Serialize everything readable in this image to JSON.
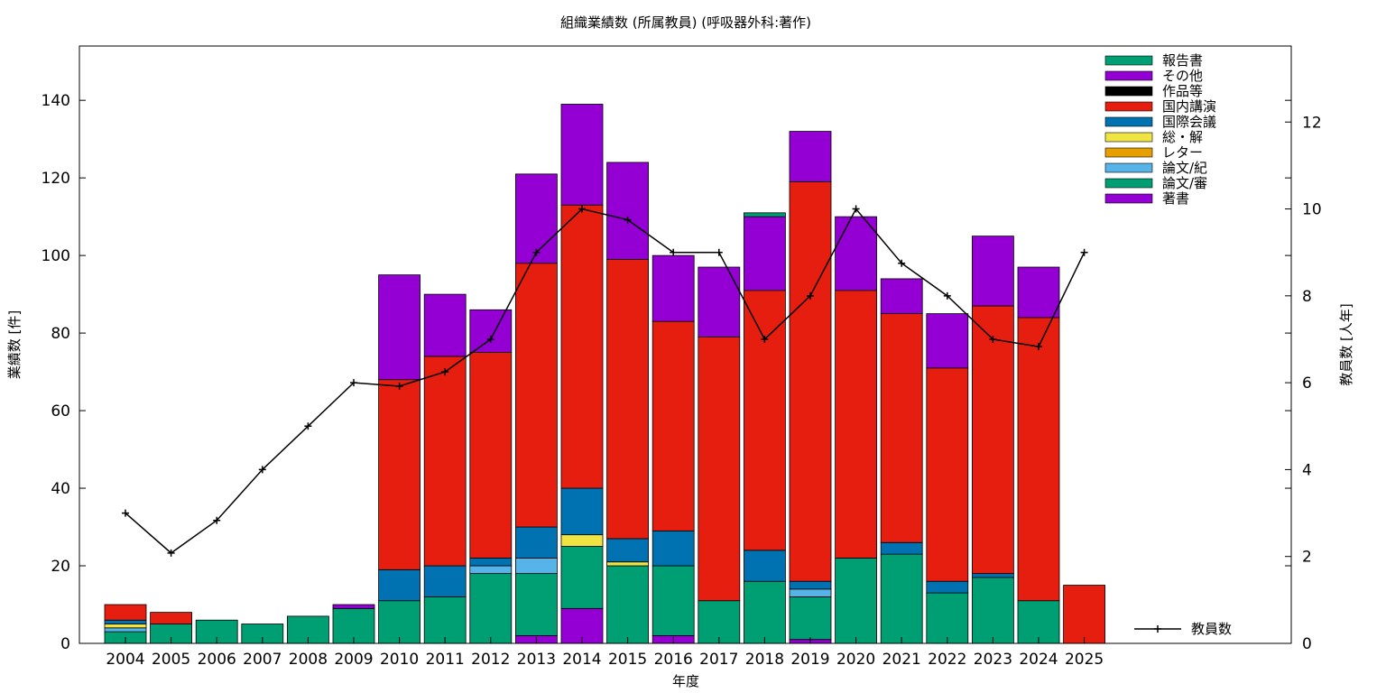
{
  "chart_data": {
    "type": "bar",
    "stacked": true,
    "title": "組織業績数 (所属教員) (呼吸器外科:著作)",
    "xlabel": "年度",
    "ylabel": "業績数 [件]",
    "y2label": "教員数 [人年]",
    "ylim": [
      0,
      154
    ],
    "y2lim": [
      0,
      13.75
    ],
    "yticks": [
      0,
      20,
      40,
      60,
      80,
      100,
      120,
      140
    ],
    "y2ticks": [
      0,
      2,
      4,
      6,
      8,
      10,
      12
    ],
    "grid": false,
    "legend_position": "top-right",
    "categories": [
      "2004",
      "2005",
      "2006",
      "2007",
      "2008",
      "2009",
      "2010",
      "2011",
      "2012",
      "2013",
      "2014",
      "2015",
      "2016",
      "2017",
      "2018",
      "2019",
      "2020",
      "2021",
      "2022",
      "2023",
      "2024",
      "2025"
    ],
    "series": [
      {
        "name": "著書",
        "color": "#9400d3",
        "values": [
          0,
          0,
          0,
          0,
          0,
          0,
          0,
          0,
          0,
          2,
          9,
          0,
          2,
          0,
          0,
          1,
          0,
          0,
          0,
          0,
          0,
          0
        ]
      },
      {
        "name": "論文/審",
        "color": "#009e73",
        "values": [
          3,
          5,
          6,
          5,
          7,
          9,
          11,
          12,
          18,
          16,
          16,
          20,
          18,
          11,
          16,
          11,
          22,
          23,
          13,
          17,
          11,
          0
        ]
      },
      {
        "name": "論文/紀",
        "color": "#56b4e9",
        "values": [
          1,
          0,
          0,
          0,
          0,
          0,
          0,
          0,
          2,
          4,
          0,
          0,
          0,
          0,
          0,
          2,
          0,
          0,
          0,
          0,
          0,
          0
        ]
      },
      {
        "name": "レター",
        "color": "#e69f00",
        "values": [
          0,
          0,
          0,
          0,
          0,
          0,
          0,
          0,
          0,
          0,
          0,
          0,
          0,
          0,
          0,
          0,
          0,
          0,
          0,
          0,
          0,
          0
        ]
      },
      {
        "name": "総・解",
        "color": "#f0e442",
        "values": [
          1,
          0,
          0,
          0,
          0,
          0,
          0,
          0,
          0,
          0,
          3,
          1,
          0,
          0,
          0,
          0,
          0,
          0,
          0,
          0,
          0,
          0
        ]
      },
      {
        "name": "国際会議",
        "color": "#0072b2",
        "values": [
          1,
          0,
          0,
          0,
          0,
          0,
          8,
          8,
          2,
          8,
          12,
          6,
          9,
          0,
          8,
          2,
          0,
          3,
          3,
          1,
          0,
          0
        ]
      },
      {
        "name": "国内講演",
        "color": "#e51e10",
        "values": [
          4,
          3,
          0,
          0,
          0,
          0,
          49,
          54,
          53,
          68,
          73,
          72,
          54,
          68,
          67,
          103,
          69,
          59,
          55,
          69,
          73,
          15
        ]
      },
      {
        "name": "作品等",
        "color": "#000000",
        "values": [
          0,
          0,
          0,
          0,
          0,
          0,
          0,
          0,
          0,
          0,
          0,
          0,
          0,
          0,
          0,
          0,
          0,
          0,
          0,
          0,
          0,
          0
        ]
      },
      {
        "name": "その他",
        "color": "#9400d3",
        "values": [
          0,
          0,
          0,
          0,
          0,
          1,
          27,
          16,
          11,
          23,
          26,
          25,
          17,
          18,
          19,
          13,
          19,
          9,
          14,
          18,
          13,
          0
        ]
      },
      {
        "name": "報告書",
        "color": "#009e73",
        "values": [
          0,
          0,
          0,
          0,
          0,
          0,
          0,
          0,
          0,
          0,
          0,
          0,
          0,
          0,
          1,
          0,
          0,
          0,
          0,
          0,
          0,
          0
        ]
      }
    ],
    "line_series": {
      "name": "教員数",
      "color": "#000000",
      "axis": "y2",
      "values": [
        3.0,
        2.08,
        2.83,
        4.0,
        5.0,
        6.0,
        5.92,
        6.25,
        7.0,
        9.0,
        10.0,
        9.75,
        9.0,
        9.0,
        7.0,
        8.0,
        10.0,
        8.75,
        8.0,
        7.0,
        6.83,
        9.0
      ]
    }
  }
}
